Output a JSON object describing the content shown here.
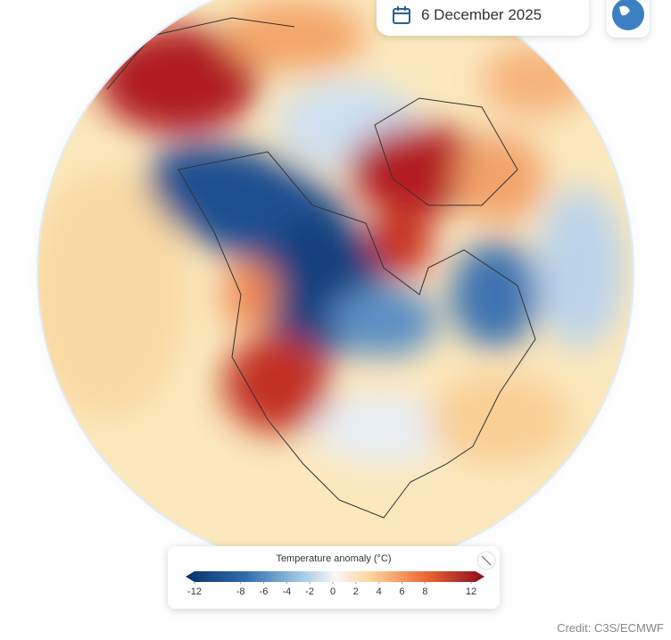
{
  "header": {
    "date": "6 December 2025"
  },
  "legend": {
    "title": "Temperature anomaly (°C)",
    "ticks": [
      -12,
      -8,
      -6,
      -4,
      -2,
      0,
      2,
      4,
      6,
      8,
      12
    ]
  },
  "footer": {
    "credit": "Credit: C3S/ECMWF"
  }
}
